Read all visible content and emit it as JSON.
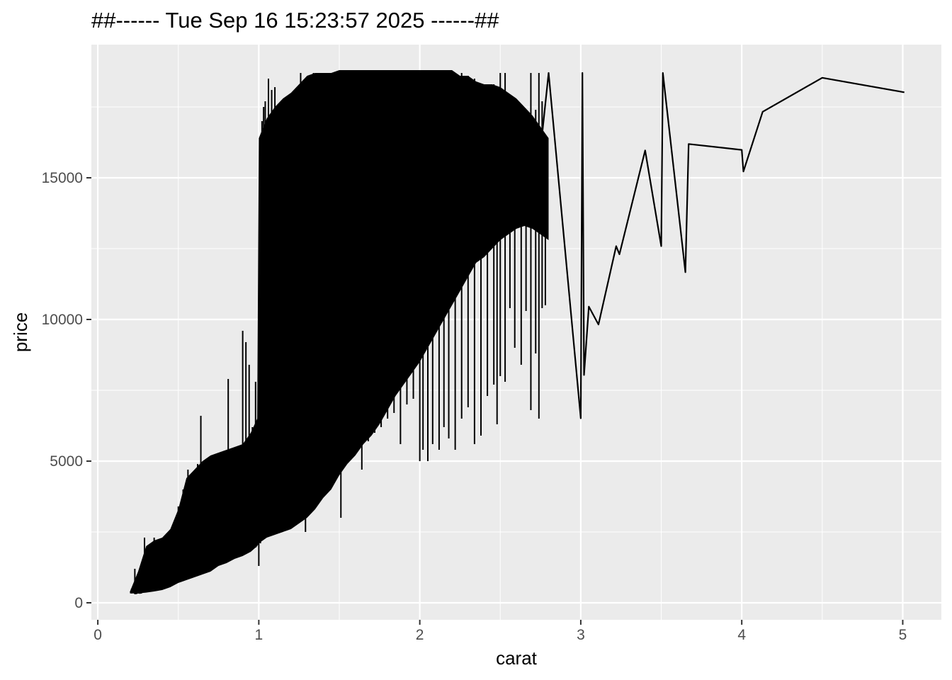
{
  "chart_data": {
    "type": "line",
    "title": "##------ Tue Sep 16 15:23:57 2025 ------##",
    "xlabel": "carat",
    "ylabel": "price",
    "xlim": [
      -0.04,
      5.24
    ],
    "ylim": [
      -600,
      19700
    ],
    "x_ticks": [
      0,
      1,
      2,
      3,
      4,
      5
    ],
    "y_ticks": [
      0,
      5000,
      10000,
      15000
    ],
    "x_tick_labels": [
      "0",
      "1",
      "2",
      "3",
      "4",
      "5"
    ],
    "y_tick_labels": [
      "0",
      "5000",
      "10000",
      "15000"
    ],
    "grid": true,
    "legend": "none",
    "series": [
      {
        "color": "#000000",
        "values_note": "",
        "x": [
          0.2,
          0.21,
          0.22,
          0.23,
          0.24,
          0.25,
          0.26,
          0.27,
          0.28,
          0.29,
          0.3,
          0.32,
          0.35,
          0.4,
          0.45,
          0.5,
          0.55,
          0.6,
          0.65,
          0.7,
          0.75,
          0.8,
          0.85,
          0.9,
          0.95,
          1.0,
          1.05,
          1.1,
          1.2,
          1.3,
          1.4,
          1.5,
          1.6,
          1.7,
          1.8,
          1.9,
          2.0,
          2.1,
          2.2,
          2.3,
          2.4,
          2.5,
          2.6,
          2.7,
          2.75,
          2.8,
          3.0,
          3.01,
          3.02,
          3.05,
          3.11,
          3.22,
          3.24,
          3.4,
          3.5,
          3.51,
          3.65,
          3.67,
          4.0,
          4.01,
          4.13,
          4.5,
          5.01
        ],
        "y": [
          367,
          386,
          404,
          327,
          336,
          357,
          345,
          352,
          400,
          405,
          500,
          600,
          700,
          900,
          1100,
          1500,
          1800,
          2200,
          2600,
          2900,
          3200,
          3500,
          3900,
          4200,
          4700,
          5000,
          5400,
          6000,
          6500,
          7000,
          7600,
          8200,
          9000,
          10000,
          11000,
          12000,
          13000,
          13500,
          14000,
          14500,
          15000,
          15500,
          16000,
          16300,
          16000,
          18700,
          6512,
          18700,
          8040,
          10453,
          9823,
          12587,
          12300,
          15964,
          12587,
          18701,
          11668,
          16193,
          15984,
          15223,
          17329,
          18531,
          18018
        ]
      }
    ],
    "band": {
      "x": [
        0.2,
        0.25,
        0.3,
        0.35,
        0.4,
        0.45,
        0.5,
        0.55,
        0.6,
        0.65,
        0.7,
        0.75,
        0.8,
        0.85,
        0.9,
        0.95,
        0.99,
        1.0,
        1.05,
        1.1,
        1.15,
        1.2,
        1.25,
        1.3,
        1.35,
        1.4,
        1.45,
        1.5,
        1.55,
        1.6,
        1.65,
        1.7,
        1.75,
        1.8,
        1.85,
        1.9,
        1.95,
        2.0,
        2.05,
        2.1,
        2.15,
        2.2,
        2.25,
        2.3,
        2.35,
        2.4,
        2.45,
        2.5,
        2.55,
        2.6,
        2.65,
        2.7,
        2.75,
        2.8
      ],
      "low": [
        330,
        330,
        360,
        400,
        450,
        550,
        700,
        800,
        900,
        1000,
        1100,
        1300,
        1400,
        1550,
        1650,
        1800,
        2000,
        2100,
        2300,
        2400,
        2500,
        2600,
        2800,
        3000,
        3300,
        3700,
        4000,
        4500,
        4900,
        5200,
        5600,
        5900,
        6300,
        6800,
        7300,
        7700,
        8100,
        8500,
        9000,
        9500,
        10000,
        10500,
        11000,
        11500,
        12000,
        12200,
        12500,
        12800,
        13000,
        13200,
        13300,
        13200,
        13000,
        12800
      ],
      "high": [
        400,
        1100,
        2000,
        2200,
        2300,
        2600,
        3300,
        4400,
        4700,
        5000,
        5200,
        5300,
        5400,
        5500,
        5600,
        6000,
        6500,
        16400,
        17100,
        17500,
        17800,
        18000,
        18300,
        18600,
        18700,
        18700,
        18700,
        18800,
        18800,
        18800,
        18800,
        18800,
        18800,
        18800,
        18800,
        18800,
        18800,
        18800,
        18800,
        18800,
        18800,
        18800,
        18600,
        18600,
        18400,
        18300,
        18300,
        18200,
        18000,
        17800,
        17500,
        17200,
        16800,
        16400
      ]
    },
    "spikes": {
      "x": [
        0.21,
        0.23,
        0.26,
        0.29,
        0.31,
        0.33,
        0.35,
        0.38,
        0.41,
        0.44,
        0.47,
        0.5,
        0.53,
        0.56,
        0.59,
        0.62,
        0.64,
        0.67,
        0.7,
        0.73,
        0.76,
        0.78,
        0.81,
        0.84,
        0.87,
        0.9,
        0.92,
        0.94,
        0.96,
        0.98,
        1.0,
        1.01,
        1.02,
        1.03,
        1.04,
        1.06,
        1.08,
        1.1,
        1.12,
        1.14,
        1.17,
        1.2,
        1.22,
        1.26,
        1.29,
        1.31,
        1.34,
        1.38,
        1.41,
        1.45,
        1.49,
        1.51,
        1.53,
        1.57,
        1.6,
        1.64,
        1.68,
        1.72,
        1.76,
        1.8,
        1.84,
        1.88,
        1.92,
        1.96,
        2.0,
        2.02,
        2.05,
        2.08,
        2.12,
        2.15,
        2.18,
        2.22,
        2.26,
        2.3,
        2.34,
        2.38,
        2.42,
        2.46,
        2.48,
        2.5,
        2.53,
        2.56,
        2.59,
        2.63,
        2.66,
        2.69,
        2.72,
        2.74,
        2.76,
        2.78
      ],
      "top": [
        500,
        1200,
        900,
        2300,
        1800,
        2000,
        2300,
        2000,
        2100,
        2500,
        2700,
        3400,
        4000,
        4700,
        4300,
        4900,
        6600,
        5000,
        5100,
        5000,
        5300,
        5000,
        7900,
        5300,
        5500,
        9600,
        9200,
        8400,
        6200,
        7800,
        5700,
        16400,
        17000,
        17500,
        17700,
        18500,
        18100,
        18200,
        16800,
        15500,
        17700,
        17100,
        15300,
        18700,
        16600,
        18300,
        18700,
        18100,
        17800,
        18700,
        18500,
        18800,
        18700,
        18800,
        18700,
        18600,
        18800,
        18700,
        18600,
        18400,
        18700,
        18500,
        18700,
        18800,
        18800,
        18700,
        18800,
        18700,
        18600,
        18800,
        18700,
        18400,
        18700,
        18600,
        18500,
        18100,
        18000,
        18300,
        17100,
        18700,
        18700,
        17400,
        16400,
        17400,
        17100,
        18700,
        17400,
        18700,
        17700,
        15000
      ],
      "bottom": [
        330,
        380,
        340,
        420,
        400,
        440,
        450,
        500,
        600,
        700,
        800,
        850,
        900,
        1000,
        1050,
        1100,
        1200,
        1200,
        1300,
        1400,
        1450,
        1500,
        1550,
        1600,
        1650,
        1700,
        1750,
        1800,
        1900,
        1950,
        1300,
        2100,
        2200,
        2300,
        2300,
        2350,
        2400,
        2450,
        2500,
        2600,
        2700,
        2800,
        2900,
        3000,
        2500,
        3300,
        3500,
        3700,
        4000,
        4200,
        4500,
        3000,
        4800,
        5100,
        5300,
        4700,
        5700,
        6000,
        6200,
        6500,
        6700,
        5600,
        7000,
        7200,
        5000,
        5400,
        5000,
        5600,
        5400,
        6200,
        5800,
        5400,
        6500,
        6900,
        5600,
        5900,
        7300,
        7700,
        6300,
        8000,
        7800,
        10400,
        9000,
        8400,
        10300,
        6800,
        8800,
        6500,
        10400,
        10500
      ]
    }
  }
}
